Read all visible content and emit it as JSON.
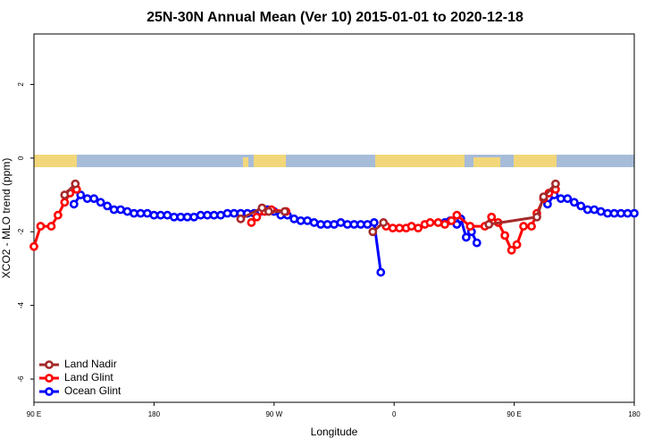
{
  "chart_data": {
    "type": "line",
    "title": "25N-30N Annual Mean (Ver 10)   2015-01-01 to 2020-12-18",
    "x_label": "Longitude",
    "y_label": "XCO2 - MLO trend (ppm)",
    "xlim": [
      90,
      540
    ],
    "ylim": [
      -6.63,
      3.37
    ],
    "xticks": [
      {
        "value": 90,
        "label": "90 E"
      },
      {
        "value": 180,
        "label": "180"
      },
      {
        "value": 270,
        "label": "90 W"
      },
      {
        "value": 360,
        "label": "0"
      },
      {
        "value": 450,
        "label": "90 E"
      },
      {
        "value": 540,
        "label": "180"
      }
    ],
    "yticks": [
      2,
      0,
      -2,
      -4,
      -6
    ],
    "legend": "bottom-left",
    "series": [
      {
        "name": "Ocean Glint",
        "color": "#0000ff",
        "x": [
          120,
          125,
          130,
          135,
          140,
          145,
          150,
          155,
          160,
          165,
          170,
          175,
          180,
          185,
          190,
          195,
          200,
          205,
          210,
          215,
          220,
          225,
          230,
          235,
          240,
          245,
          250,
          255,
          260,
          265,
          270,
          275,
          280,
          285,
          290,
          295,
          300,
          305,
          310,
          315,
          320,
          325,
          330,
          335,
          340,
          345,
          350,
          390,
          398,
          402,
          407,
          410,
          414,
          418,
          422,
          450,
          475,
          480,
          485,
          490,
          495,
          500,
          505,
          510,
          515,
          520,
          525,
          530,
          535,
          540
        ],
        "values": [
          -1.25,
          -1.0,
          -1.1,
          -1.1,
          -1.2,
          -1.3,
          -1.4,
          -1.4,
          -1.45,
          -1.5,
          -1.5,
          -1.5,
          -1.55,
          -1.55,
          -1.55,
          -1.6,
          -1.6,
          -1.6,
          -1.6,
          -1.55,
          -1.55,
          -1.55,
          -1.55,
          -1.5,
          -1.5,
          -1.5,
          -1.5,
          -1.5,
          -1.45,
          -1.4,
          -1.45,
          -1.55,
          -1.55,
          -1.65,
          -1.7,
          -1.7,
          -1.75,
          -1.8,
          -1.8,
          -1.8,
          -1.75,
          -1.8,
          -1.8,
          -1.8,
          -1.8,
          -1.75,
          -3.1,
          null,
          -1.75,
          -1.7,
          -1.8,
          -1.65,
          -2.15,
          -2.0,
          -2.3,
          null,
          -1.25,
          -1.0,
          -1.1,
          -1.1,
          -1.2,
          -1.3,
          -1.4,
          -1.4,
          -1.45,
          -1.5,
          -1.5,
          -1.5,
          -1.5,
          -1.5
        ]
      },
      {
        "name": "Land Glint",
        "color": "#ff0000",
        "x": [
          90,
          95,
          103,
          108,
          113,
          117,
          122,
          200,
          253,
          257,
          263,
          268,
          279,
          300,
          354,
          359,
          364,
          369,
          373,
          378,
          383,
          387,
          393,
          398,
          403,
          407,
          417,
          428,
          433,
          438,
          443,
          448,
          452,
          457,
          463,
          467,
          472,
          476,
          481
        ],
        "values": [
          -2.4,
          -1.85,
          -1.85,
          -1.55,
          -1.2,
          -0.95,
          -0.85,
          null,
          -1.75,
          -1.6,
          -1.45,
          -1.4,
          -1.45,
          null,
          -1.85,
          -1.9,
          -1.9,
          -1.9,
          -1.85,
          -1.9,
          -1.8,
          -1.75,
          -1.75,
          -1.8,
          -1.7,
          -1.55,
          -1.85,
          -1.85,
          -1.6,
          -1.75,
          -2.1,
          -2.5,
          -2.35,
          -1.85,
          -1.85,
          -1.5,
          -1.1,
          -0.95,
          -0.85
        ]
      },
      {
        "name": "Land Nadir",
        "color": "#a52a2a",
        "x": [
          113,
          121,
          200,
          245,
          261,
          266,
          278,
          300,
          344,
          352,
          400,
          431,
          467,
          472,
          481
        ],
        "values": [
          -1.0,
          -0.7,
          null,
          -1.65,
          -1.35,
          -1.45,
          -1.45,
          null,
          -2.0,
          -1.75,
          null,
          -1.8,
          -1.6,
          -1.05,
          -0.7
        ]
      }
    ]
  }
}
